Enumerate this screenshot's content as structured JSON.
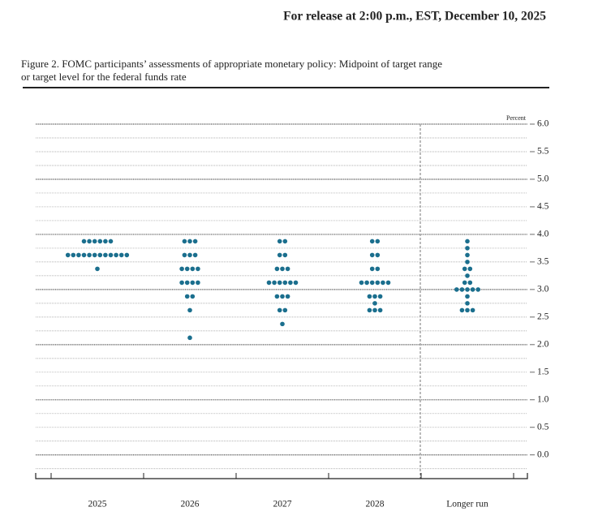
{
  "header": "For release at 2:00 p.m., EST, December 10, 2025",
  "chart_data": {
    "type": "dot",
    "title": [
      "Figure 2. FOMC participants’ assessments of appropriate monetary policy: Midpoint of target range",
      "or target level for the federal funds rate"
    ],
    "y_unit_label": "Percent",
    "color": "#1b6f8e",
    "categories": [
      "2025",
      "2026",
      "2027",
      "2028",
      "Longer run"
    ],
    "dots": [
      [
        {
          "value": 3.875,
          "count": 6
        },
        {
          "value": 3.625,
          "count": 12
        },
        {
          "value": 3.375,
          "count": 1
        }
      ],
      [
        {
          "value": 3.875,
          "count": 3
        },
        {
          "value": 3.625,
          "count": 3
        },
        {
          "value": 3.375,
          "count": 4
        },
        {
          "value": 3.125,
          "count": 4
        },
        {
          "value": 2.875,
          "count": 2
        },
        {
          "value": 2.625,
          "count": 1
        },
        {
          "value": 2.125,
          "count": 1
        }
      ],
      [
        {
          "value": 3.875,
          "count": 2
        },
        {
          "value": 3.625,
          "count": 2
        },
        {
          "value": 3.375,
          "count": 3
        },
        {
          "value": 3.125,
          "count": 6
        },
        {
          "value": 2.875,
          "count": 3
        },
        {
          "value": 2.625,
          "count": 2
        },
        {
          "value": 2.375,
          "count": 1
        }
      ],
      [
        {
          "value": 3.875,
          "count": 2
        },
        {
          "value": 3.625,
          "count": 2
        },
        {
          "value": 3.375,
          "count": 2
        },
        {
          "value": 3.125,
          "count": 6
        },
        {
          "value": 2.875,
          "count": 3
        },
        {
          "value": 2.75,
          "count": 1
        },
        {
          "value": 2.625,
          "count": 3
        }
      ],
      [
        {
          "value": 3.875,
          "count": 1
        },
        {
          "value": 3.75,
          "count": 1
        },
        {
          "value": 3.625,
          "count": 1
        },
        {
          "value": 3.5,
          "count": 1
        },
        {
          "value": 3.375,
          "count": 2
        },
        {
          "value": 3.25,
          "count": 1
        },
        {
          "value": 3.125,
          "count": 2
        },
        {
          "value": 3.0,
          "count": 5
        },
        {
          "value": 2.875,
          "count": 1
        },
        {
          "value": 2.75,
          "count": 1
        },
        {
          "value": 2.625,
          "count": 3
        }
      ]
    ],
    "ylim": [
      -0.43,
      6.0
    ],
    "yticks": [
      {
        "value": 6,
        "label": "6.0"
      },
      {
        "value": 5.5,
        "label": "5.5"
      },
      {
        "value": 5,
        "label": "5.0"
      },
      {
        "value": 4.5,
        "label": "4.5"
      },
      {
        "value": 4,
        "label": "4.0"
      },
      {
        "value": 3.5,
        "label": "3.5"
      },
      {
        "value": 3,
        "label": "3.0"
      },
      {
        "value": 2.5,
        "label": "2.5"
      },
      {
        "value": 2,
        "label": "2.0"
      },
      {
        "value": 1.5,
        "label": "1.5"
      },
      {
        "value": 1,
        "label": "1.0"
      },
      {
        "value": 0.5,
        "label": "0.5"
      },
      {
        "value": 0,
        "label": "0.0"
      }
    ],
    "minor_ticks": [
      5.75,
      5.25,
      4.75,
      4.25,
      3.75,
      3.25,
      2.75,
      2.25,
      1.75,
      1.25,
      0.75,
      0.25,
      -0.25
    ],
    "grid": true
  }
}
